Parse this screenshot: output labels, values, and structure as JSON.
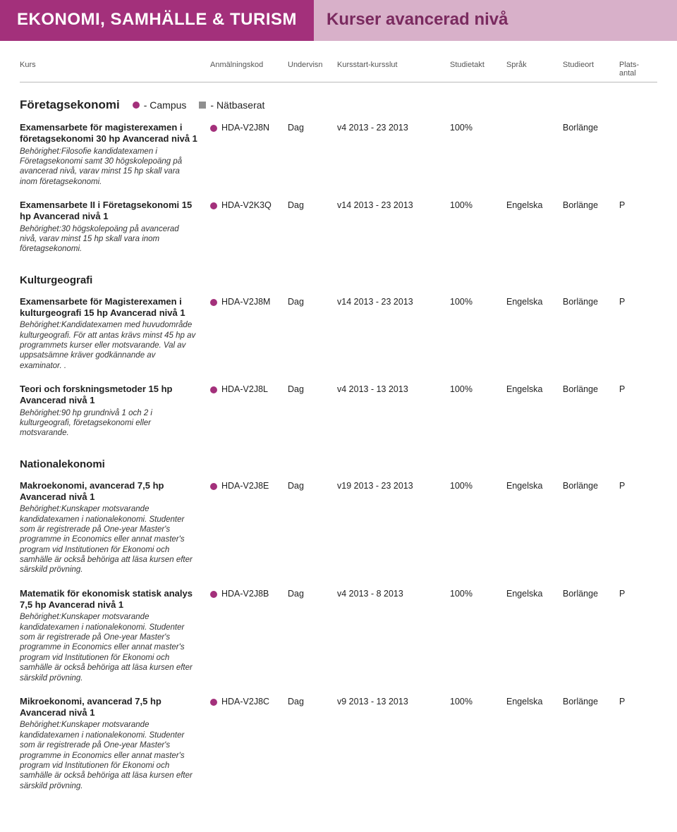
{
  "colors": {
    "banner_left_bg": "#a3307b",
    "banner_left_text": "#ffffff",
    "banner_right_bg": "#d8b0c9",
    "banner_right_text": "#7a2a5f",
    "campus_dot": "#a3307b",
    "net_square": "#8f8f8f"
  },
  "banner": {
    "left": "EKONOMI, SAMHÄLLE & TURISM",
    "right": "Kurser avancerad nivå"
  },
  "headers": [
    "Kurs",
    "Anmälningskod",
    "Undervisn",
    "Kursstart-kursslut",
    "Studietakt",
    "Språk",
    "Studieort",
    "Plats-antal"
  ],
  "legend": {
    "campus": "- Campus",
    "net": "- Nätbaserat"
  },
  "sections": [
    {
      "title": "Företagsekonomi",
      "show_legend": true,
      "courses": [
        {
          "title": "Examensarbete för magisterexamen i företagsekonomi 30 hp Avancerad nivå 1",
          "req": "Behörighet:Filosofie kandidatexamen i Företagsekonomi samt 30 högskolepoäng på avancerad nivå, varav minst 15 hp skall vara inom företagsekonomi.",
          "code": "HDA-V2J8N",
          "mode": "Dag",
          "period": "v4 2013 - 23 2013",
          "pace": "100%",
          "lang": "",
          "place": "Borlänge",
          "slots": ""
        },
        {
          "title": "Examensarbete II i Företagsekonomi 15 hp Avancerad nivå 1",
          "req": "Behörighet:30 högskolepoäng på avancerad nivå, varav minst 15 hp skall vara inom företagsekonomi.",
          "code": "HDA-V2K3Q",
          "mode": "Dag",
          "period": "v14 2013 - 23 2013",
          "pace": "100%",
          "lang": "Engelska",
          "place": "Borlänge",
          "slots": "P"
        }
      ]
    },
    {
      "title": "Kulturgeografi",
      "show_legend": false,
      "courses": [
        {
          "title": "Examensarbete för Magisterexamen i kulturgeografi 15 hp Avancerad nivå 1",
          "req": "Behörighet:Kandidatexamen med huvudområde kulturgeografi. För att antas krävs minst 45 hp av programmets kurser eller motsvarande. Val av uppsatsämne kräver godkännande av examinator. .",
          "code": "HDA-V2J8M",
          "mode": "Dag",
          "period": "v14 2013 - 23 2013",
          "pace": "100%",
          "lang": "Engelska",
          "place": "Borlänge",
          "slots": "P"
        },
        {
          "title": "Teori och forskningsmetoder 15 hp Avancerad nivå 1",
          "req": "Behörighet:90 hp grundnivå 1 och 2 i kulturgeografi, företagsekonomi eller motsvarande.",
          "code": "HDA-V2J8L",
          "mode": "Dag",
          "period": "v4 2013 - 13 2013",
          "pace": "100%",
          "lang": "Engelska",
          "place": "Borlänge",
          "slots": "P"
        }
      ]
    },
    {
      "title": "Nationalekonomi",
      "show_legend": false,
      "courses": [
        {
          "title": "Makroekonomi, avancerad 7,5 hp Avancerad nivå 1",
          "req": "Behörighet:Kunskaper motsvarande kandidatexamen i nationalekonomi. Studenter som är registrerade på One-year Master's programme in Economics eller annat master's program vid Institutionen för Ekonomi och samhälle är också behöriga att läsa kursen efter särskild prövning.",
          "code": "HDA-V2J8E",
          "mode": "Dag",
          "period": "v19 2013 - 23 2013",
          "pace": "100%",
          "lang": "Engelska",
          "place": "Borlänge",
          "slots": "P"
        },
        {
          "title": "Matematik för ekonomisk statisk analys 7,5 hp Avancerad nivå 1",
          "req": "Behörighet:Kunskaper motsvarande kandidatexamen i nationalekonomi. Studenter som är registrerade på One-year Master's programme in Economics eller annat master's program vid Institutionen för Ekonomi och samhälle är också behöriga att läsa kursen efter särskild prövning.",
          "code": "HDA-V2J8B",
          "mode": "Dag",
          "period": "v4 2013 - 8 2013",
          "pace": "100%",
          "lang": "Engelska",
          "place": "Borlänge",
          "slots": "P"
        },
        {
          "title": "Mikroekonomi, avancerad 7,5 hp Avancerad nivå 1",
          "req": "Behörighet:Kunskaper motsvarande kandidatexamen i nationalekonomi. Studenter som är registrerade på One-year Master's programme in Economics eller annat master's program vid Institutionen för Ekonomi och samhälle är också behöriga att läsa kursen efter särskild prövning.",
          "code": "HDA-V2J8C",
          "mode": "Dag",
          "period": "v9 2013 - 13 2013",
          "pace": "100%",
          "lang": "Engelska",
          "place": "Borlänge",
          "slots": "P"
        }
      ]
    }
  ]
}
